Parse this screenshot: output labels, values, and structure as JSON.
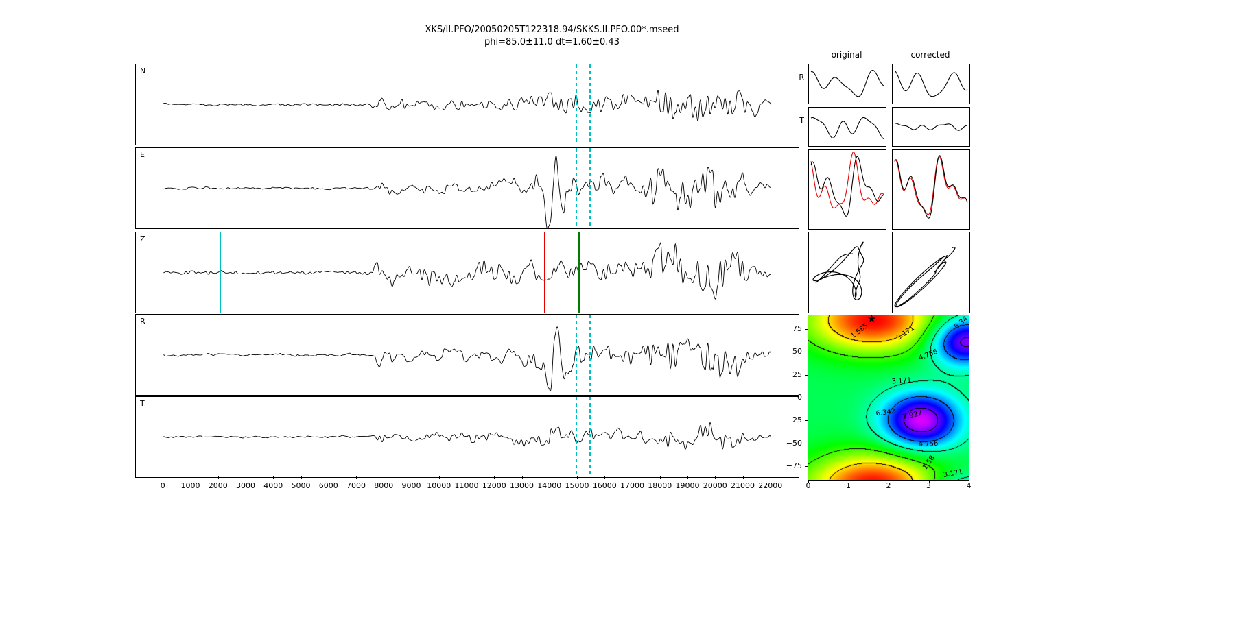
{
  "title": {
    "line1": "XKS/II.PFO/20050205T122318.94/SKKS.II.PFO.00*.mseed",
    "line2": "phi=85.0±11.0 dt=1.60±0.43"
  },
  "colors": {
    "trace": "#000000",
    "cyan": "#00bfbf",
    "red": "#e60000",
    "green": "#007d00",
    "star": "#000000"
  },
  "chart_data": [
    {
      "id": "seismogram-panels",
      "type": "line",
      "xlim": [
        -1000,
        23000
      ],
      "x_ticks": [
        0,
        1000,
        2000,
        3000,
        4000,
        5000,
        6000,
        7000,
        8000,
        9000,
        10000,
        11000,
        12000,
        13000,
        14000,
        15000,
        16000,
        17000,
        18000,
        19000,
        20000,
        21000,
        22000
      ],
      "window_lines": {
        "x": [
          14950,
          15450
        ],
        "style": "dashed",
        "color": "#00bfbf"
      },
      "panels": [
        {
          "label": "N",
          "seed": 11,
          "window": true,
          "envelope": [
            [
              0,
              0.05
            ],
            [
              7500,
              0.055
            ],
            [
              7800,
              0.38
            ],
            [
              8600,
              0.26
            ],
            [
              9500,
              0.24
            ],
            [
              12500,
              0.3
            ],
            [
              13600,
              0.5
            ],
            [
              14400,
              0.62
            ],
            [
              15800,
              0.5
            ],
            [
              17300,
              0.38
            ],
            [
              17800,
              1.0
            ],
            [
              18700,
              0.8
            ],
            [
              19500,
              0.95
            ],
            [
              20400,
              0.9
            ],
            [
              21000,
              0.55
            ],
            [
              21600,
              0.32
            ],
            [
              22000,
              0.18
            ]
          ]
        },
        {
          "label": "E",
          "seed": 23,
          "window": true,
          "envelope": [
            [
              0,
              0.05
            ],
            [
              7500,
              0.06
            ],
            [
              7800,
              0.4
            ],
            [
              8600,
              0.28
            ],
            [
              9500,
              0.26
            ],
            [
              12500,
              0.32
            ],
            [
              13500,
              0.5
            ],
            [
              14800,
              0.7
            ],
            [
              15800,
              0.55
            ],
            [
              17300,
              0.42
            ],
            [
              17900,
              1.35
            ],
            [
              18800,
              1.1
            ],
            [
              19600,
              1.3
            ],
            [
              20500,
              1.25
            ],
            [
              21100,
              0.6
            ],
            [
              21700,
              0.35
            ],
            [
              22000,
              0.2
            ]
          ],
          "pulses": [
            {
              "x": 13930,
              "s": 130,
              "a": -1.25
            },
            {
              "x": 14210,
              "s": 120,
              "a": 1.1
            },
            {
              "x": 14520,
              "s": 130,
              "a": -0.55
            }
          ]
        },
        {
          "label": "Z",
          "seed": 37,
          "window": false,
          "marker_lines": [
            {
              "x": 2050,
              "color": "#00bfbf"
            },
            {
              "x": 13800,
              "color": "#e60000"
            },
            {
              "x": 15050,
              "color": "#007d00"
            }
          ],
          "envelope": [
            [
              0,
              0.09
            ],
            [
              7400,
              0.1
            ],
            [
              7700,
              1.0
            ],
            [
              8200,
              0.55
            ],
            [
              9000,
              0.5
            ],
            [
              10500,
              0.52
            ],
            [
              12500,
              0.55
            ],
            [
              14500,
              0.5
            ],
            [
              16500,
              0.48
            ],
            [
              17300,
              0.45
            ],
            [
              17900,
              1.5
            ],
            [
              18800,
              1.05
            ],
            [
              19700,
              1.2
            ],
            [
              20600,
              1.15
            ],
            [
              21200,
              0.55
            ],
            [
              21700,
              0.3
            ],
            [
              22000,
              0.2
            ]
          ]
        },
        {
          "label": "R",
          "seed": 49,
          "window": true,
          "envelope": [
            [
              0,
              0.05
            ],
            [
              7500,
              0.06
            ],
            [
              7800,
              0.38
            ],
            [
              8600,
              0.27
            ],
            [
              9500,
              0.25
            ],
            [
              12500,
              0.32
            ],
            [
              13500,
              0.5
            ],
            [
              14800,
              0.68
            ],
            [
              15800,
              0.52
            ],
            [
              17300,
              0.4
            ],
            [
              17900,
              1.3
            ],
            [
              18800,
              1.0
            ],
            [
              19600,
              1.25
            ],
            [
              20400,
              1.15
            ],
            [
              21000,
              0.6
            ],
            [
              21600,
              0.33
            ],
            [
              22000,
              0.2
            ]
          ],
          "pulses": [
            {
              "x": 13960,
              "s": 135,
              "a": -1.2
            },
            {
              "x": 14260,
              "s": 125,
              "a": 1.05
            },
            {
              "x": 14560,
              "s": 130,
              "a": -0.5
            }
          ]
        },
        {
          "label": "T",
          "seed": 61,
          "window": true,
          "envelope": [
            [
              0,
              0.04
            ],
            [
              7500,
              0.05
            ],
            [
              7800,
              0.28
            ],
            [
              8600,
              0.2
            ],
            [
              9500,
              0.2
            ],
            [
              12500,
              0.26
            ],
            [
              13600,
              0.42
            ],
            [
              14500,
              0.5
            ],
            [
              15800,
              0.45
            ],
            [
              17300,
              0.33
            ],
            [
              17900,
              0.6
            ],
            [
              18900,
              0.5
            ],
            [
              19800,
              0.58
            ],
            [
              20700,
              0.55
            ],
            [
              21200,
              0.35
            ],
            [
              21700,
              0.22
            ],
            [
              22000,
              0.12
            ]
          ]
        }
      ]
    },
    {
      "id": "component-comparison",
      "type": "line",
      "col_headers": [
        "original",
        "corrected"
      ],
      "rows": [
        {
          "label": "R",
          "kind": "wave",
          "original": {
            "harmonics": [
              [
                1.2,
                0.55,
                0.5
              ],
              [
                2.3,
                0.7,
                2.0
              ],
              [
                3.7,
                0.3,
                1.0
              ]
            ]
          },
          "corrected": {
            "harmonics": [
              [
                1.1,
                0.6,
                1.0
              ],
              [
                2.4,
                0.85,
                2.6
              ],
              [
                3.6,
                0.35,
                1.2
              ]
            ]
          }
        },
        {
          "label": "T",
          "kind": "wave",
          "original": {
            "harmonics": [
              [
                1.5,
                0.5,
                1.2
              ],
              [
                2.8,
                0.6,
                0.3
              ],
              [
                4.2,
                0.35,
                2.5
              ]
            ]
          },
          "corrected": {
            "harmonics": [
              [
                1.6,
                0.15,
                1.0
              ],
              [
                3.1,
                0.18,
                0.6
              ],
              [
                5.0,
                0.12,
                2.2
              ]
            ]
          }
        },
        {
          "label": "",
          "kind": "overlay",
          "original": {
            "black": [
              [
                1.7,
                0.8,
                0.4
              ],
              [
                3.1,
                0.5,
                1.8
              ],
              [
                5.0,
                0.3,
                0.9
              ]
            ],
            "red": [
              [
                1.7,
                0.8,
                1.5
              ],
              [
                3.1,
                0.5,
                2.9
              ],
              [
                5.0,
                0.3,
                2.0
              ]
            ]
          },
          "corrected": {
            "black": [
              [
                1.7,
                0.85,
                0.5
              ],
              [
                3.2,
                0.55,
                1.9
              ],
              [
                5.1,
                0.3,
                1.0
              ]
            ],
            "red": [
              [
                1.7,
                0.8,
                0.65
              ],
              [
                3.2,
                0.5,
                2.05
              ],
              [
                5.1,
                0.3,
                1.15
              ]
            ]
          }
        },
        {
          "label": "",
          "kind": "motion",
          "original": {
            "x": [
              [
                1,
                0.8,
                0.0
              ],
              [
                2,
                0.45,
                1.3
              ],
              [
                3.2,
                0.2,
                2.2
              ]
            ],
            "y": [
              [
                1,
                0.8,
                1.5
              ],
              [
                2,
                0.35,
                0.3
              ],
              [
                3.2,
                0.25,
                1.1
              ]
            ],
            "cycles": 2
          },
          "corrected": {
            "x": [
              [
                1,
                0.85,
                0.3
              ],
              [
                2.1,
                0.5,
                1.1
              ],
              [
                3.3,
                0.2,
                2.0
              ]
            ],
            "y": [
              [
                1,
                0.85,
                0.55
              ],
              [
                2.1,
                0.45,
                1.35
              ],
              [
                3.3,
                0.2,
                2.3
              ]
            ],
            "cycles": 2
          }
        }
      ]
    },
    {
      "id": "error-surface",
      "type": "heatmap",
      "xlim": [
        0,
        4
      ],
      "ylim": [
        -90,
        90
      ],
      "x_ticks": [
        0,
        1,
        2,
        3,
        4
      ],
      "y_ticks": [
        75,
        50,
        25,
        0,
        -25,
        -50,
        -75
      ],
      "contour_levels": [
        1.585,
        3.171,
        4.756,
        6.342,
        7.927
      ],
      "best_fit": {
        "phi": 85.0,
        "phi_err": 11.0,
        "dt": 1.6,
        "dt_err": 0.43
      },
      "star": {
        "x": 1.6,
        "y": 85
      },
      "surface_model": {
        "base": 4.2,
        "emax": 9.0,
        "terms": [
          {
            "amp": -4.2,
            "x0": 1.6,
            "sx": 1.6,
            "phi0": 85,
            "sphi": 35
          },
          {
            "amp": 4.6,
            "x0": 2.8,
            "sx": 0.95,
            "phi0": -25,
            "sphi": 30
          },
          {
            "amp": 4.2,
            "x0": 3.9,
            "sx": 0.85,
            "phi0": 62,
            "sphi": 26
          }
        ]
      },
      "contour_labels": [
        {
          "text": "1.585",
          "x": 1.3,
          "y": 72,
          "rot": -38
        },
        {
          "text": "3.171",
          "x": 2.45,
          "y": 70,
          "rot": -35
        },
        {
          "text": "6.34",
          "x": 3.83,
          "y": 81,
          "rot": -40
        },
        {
          "text": "4.756",
          "x": 3.0,
          "y": 46,
          "rot": -22
        },
        {
          "text": "3.171",
          "x": 2.35,
          "y": 17,
          "rot": -4
        },
        {
          "text": "6.342",
          "x": 1.95,
          "y": -17,
          "rot": -8
        },
        {
          "text": "7.927",
          "x": 2.62,
          "y": -20,
          "rot": -12
        },
        {
          "text": "4.756",
          "x": 3.0,
          "y": -52,
          "rot": -3
        },
        {
          "text": "1.58",
          "x": 3.02,
          "y": -72,
          "rot": -55
        },
        {
          "text": "3.171",
          "x": 3.62,
          "y": -84,
          "rot": -10
        }
      ]
    }
  ]
}
